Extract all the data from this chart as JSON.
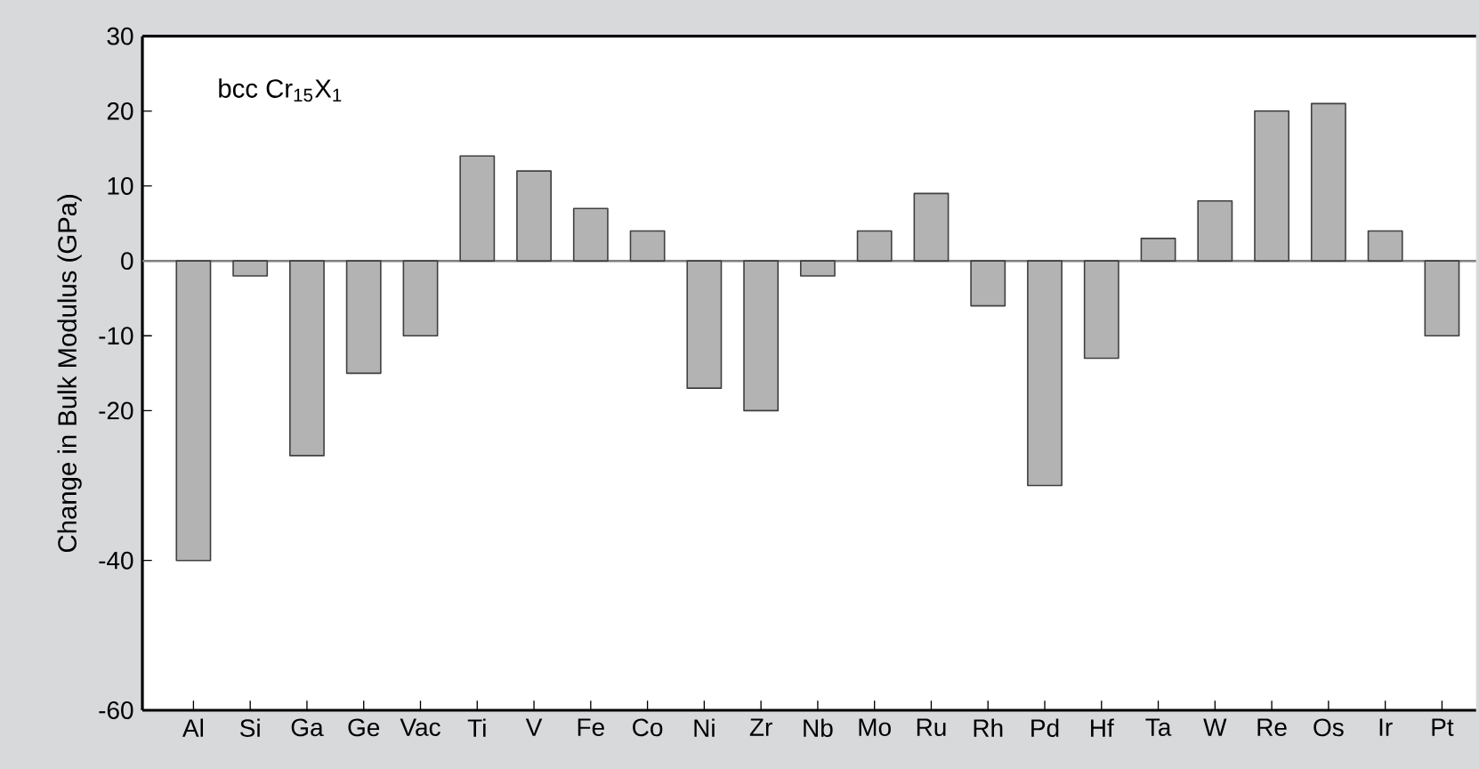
{
  "chart_data": {
    "type": "bar",
    "ylabel": "Change in Bulk Modulus (GPa)",
    "annotations": [
      "bcc Cr$_{15}$X$_{1}$"
    ],
    "categories": [
      "Al",
      "Si",
      "Ga",
      "Ge",
      "Vac",
      "Ti",
      "V",
      "Fe",
      "Co",
      "Ni",
      "Zr",
      "Nb",
      "Mo",
      "Ru",
      "Rh",
      "Pd",
      "Hf",
      "Ta",
      "W",
      "Re",
      "Os",
      "Ir",
      "Pt"
    ],
    "values": [
      -40,
      -2,
      -26,
      -15,
      -10,
      14,
      12,
      7,
      4,
      -17,
      -20,
      -2,
      4,
      9,
      -6,
      -30,
      -13,
      3,
      8,
      20,
      21,
      4,
      -10
    ],
    "color": "#b3b3b3",
    "ylim": [
      -60,
      30
    ],
    "yticks": [
      -60,
      -40,
      -20,
      -10,
      0,
      10,
      20,
      30
    ],
    "ref_lines": [
      {
        "axis": "y",
        "value": 0,
        "color": "#808080"
      }
    ],
    "grid": false
  }
}
